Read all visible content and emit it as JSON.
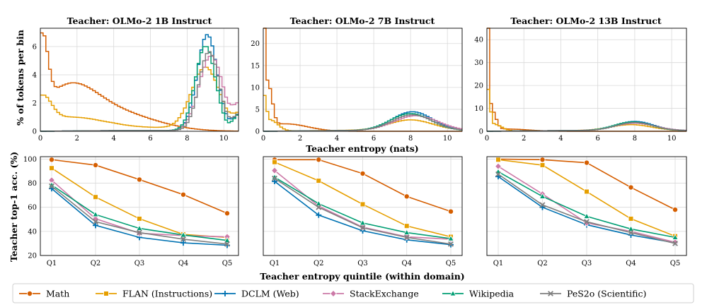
{
  "colors": {
    "Math": "#d55e00",
    "FLAN (Instructions)": "#e69f00",
    "DCLM (Web)": "#0072b2",
    "StackExchange": "#cc79a7",
    "Wikipedia": "#009e73",
    "PeS2o (Scientific)": "#7f7f7f"
  },
  "figure": {
    "top_xlabel": "Teacher entropy (nats)",
    "top_ylabel": "% of tokens per bin",
    "bottom_xlabel": "Teacher entropy quintile (within domain)",
    "bottom_ylabel": "Teacher top-1 acc. (%)"
  },
  "chart_data": [
    {
      "type": "line",
      "style": "step-histogram",
      "title": "Teacher: OLMo-2 1B Instruct",
      "xlabel": "Teacher entropy (nats)",
      "ylabel": "% of tokens per bin",
      "xlim": [
        0,
        10.8
      ],
      "ylim": [
        0,
        7.3
      ],
      "xticks": [
        0,
        2,
        4,
        6,
        8,
        10
      ],
      "yticks": [
        0,
        2,
        4,
        6
      ],
      "grid": true,
      "bins": {
        "start": 0,
        "end": 10.8,
        "width": 0.15
      },
      "series": [
        {
          "name": "Math",
          "peaks": [
            [
              0.1,
              5.0,
              0.3
            ],
            [
              1.5,
              2.7,
              1.5
            ],
            [
              4.0,
              1.3,
              2.2
            ]
          ],
          "ygrow": 0,
          "tail": 0.08,
          "cutoff": 0
        },
        {
          "name": "FLAN (Instructions)",
          "peaks": [
            [
              0.1,
              1.9,
              0.5
            ],
            [
              1.5,
              0.9,
              1.8
            ],
            [
              9.0,
              4.3,
              0.75
            ]
          ],
          "ygrow": 0.25,
          "tail": 0.9,
          "cutoff": 10.8
        },
        {
          "name": "DCLM (Web)",
          "peaks": [
            [
              9.1,
              6.8,
              0.55
            ]
          ],
          "ygrow": 0.05,
          "tail": 1.2,
          "cutoff": 10.8
        },
        {
          "name": "StackExchange",
          "peaks": [
            [
              9.3,
              5.3,
              0.65
            ]
          ],
          "ygrow": 0.05,
          "tail": 1.7,
          "cutoff": 10.8
        },
        {
          "name": "Wikipedia",
          "peaks": [
            [
              9.0,
              6.0,
              0.55
            ]
          ],
          "ygrow": 0.05,
          "tail": 1.2,
          "cutoff": 10.8
        },
        {
          "name": "PeS2o (Scientific)",
          "peaks": [
            [
              9.2,
              5.6,
              0.55
            ]
          ],
          "ygrow": 0.05,
          "tail": 1.2,
          "cutoff": 10.8
        }
      ]
    },
    {
      "type": "line",
      "style": "step-histogram",
      "title": "Teacher: OLMo-2 7B Instruct",
      "xlabel": "Teacher entropy (nats)",
      "ylabel": "",
      "xlim": [
        0,
        10.8
      ],
      "ylim": [
        0,
        23.5
      ],
      "xticks": [
        0,
        2,
        4,
        6,
        8,
        10
      ],
      "yticks": [
        0,
        5,
        10,
        15,
        20
      ],
      "grid": true,
      "bins": {
        "start": 0,
        "end": 10.8,
        "width": 0.15
      },
      "series": [
        {
          "name": "Math",
          "peaks": [
            [
              0.05,
              22.5,
              0.08
            ],
            [
              0.3,
              9.0,
              0.2
            ],
            [
              1.2,
              1.7,
              1.2
            ]
          ],
          "ygrow": 0,
          "tail": 0.2,
          "cutoff": 0
        },
        {
          "name": "FLAN (Instructions)",
          "peaks": [
            [
              0.05,
              6.5,
              0.12
            ],
            [
              0.4,
              2.5,
              0.4
            ],
            [
              8.0,
              2.4,
              1.2
            ]
          ],
          "ygrow": 0.2,
          "tail": 0.4,
          "cutoff": 0
        },
        {
          "name": "DCLM (Web)",
          "peaks": [
            [
              8.1,
              4.3,
              1.1
            ]
          ],
          "ygrow": 0.15,
          "tail": 0.7,
          "cutoff": 0
        },
        {
          "name": "StackExchange",
          "peaks": [
            [
              8.3,
              3.4,
              1.2
            ]
          ],
          "ygrow": 0.15,
          "tail": 0.9,
          "cutoff": 0
        },
        {
          "name": "Wikipedia",
          "peaks": [
            [
              8.0,
              3.9,
              1.1
            ]
          ],
          "ygrow": 0.15,
          "tail": 0.7,
          "cutoff": 0
        },
        {
          "name": "PeS2o (Scientific)",
          "peaks": [
            [
              8.1,
              3.6,
              1.1
            ]
          ],
          "ygrow": 0.15,
          "tail": 0.7,
          "cutoff": 0
        }
      ]
    },
    {
      "type": "line",
      "style": "step-histogram",
      "title": "Teacher: OLMo-2 13B Instruct",
      "xlabel": "Teacher entropy (nats)",
      "ylabel": "",
      "xlim": [
        0,
        10.8
      ],
      "ylim": [
        0,
        45
      ],
      "xticks": [
        0,
        2,
        4,
        6,
        8,
        10
      ],
      "yticks": [
        0,
        10,
        20,
        30,
        40
      ],
      "grid": true,
      "bins": {
        "start": 0,
        "end": 10.8,
        "width": 0.15
      },
      "series": [
        {
          "name": "Math",
          "peaks": [
            [
              0.05,
              42.5,
              0.08
            ],
            [
              0.3,
              8.0,
              0.2
            ],
            [
              1.0,
              1.0,
              1.2
            ]
          ],
          "ygrow": 0,
          "tail": 0,
          "cutoff": 0
        },
        {
          "name": "FLAN (Instructions)",
          "peaks": [
            [
              0.05,
              16.5,
              0.12
            ],
            [
              0.4,
              3.0,
              0.4
            ],
            [
              7.8,
              2.6,
              1.1
            ]
          ],
          "ygrow": 0.3,
          "tail": 0,
          "cutoff": 0
        },
        {
          "name": "DCLM (Web)",
          "peaks": [
            [
              8.0,
              4.0,
              1.0
            ]
          ],
          "ygrow": 0.3,
          "tail": 0,
          "cutoff": 0
        },
        {
          "name": "StackExchange",
          "peaks": [
            [
              8.0,
              3.2,
              1.1
            ]
          ],
          "ygrow": 0.3,
          "tail": 0,
          "cutoff": 0
        },
        {
          "name": "Wikipedia",
          "peaks": [
            [
              7.9,
              3.8,
              1.0
            ]
          ],
          "ygrow": 0.3,
          "tail": 0,
          "cutoff": 0
        },
        {
          "name": "PeS2o (Scientific)",
          "peaks": [
            [
              8.0,
              3.5,
              1.0
            ]
          ],
          "ygrow": 0.3,
          "tail": 0,
          "cutoff": 0
        }
      ]
    },
    {
      "type": "line",
      "title": "",
      "xlabel": "Teacher entropy quintile (within domain)",
      "ylabel": "Teacher top-1 acc. (%)",
      "categories": [
        "Q1",
        "Q2",
        "Q3",
        "Q4",
        "Q5"
      ],
      "ylim": [
        20,
        102
      ],
      "yticks": [
        20,
        40,
        60,
        80,
        100
      ],
      "grid": true,
      "series": [
        {
          "name": "Math",
          "values": [
            99.5,
            95,
            83,
            70.5,
            55
          ]
        },
        {
          "name": "FLAN (Instructions)",
          "values": [
            92.5,
            68.5,
            50.5,
            37.5,
            35
          ]
        },
        {
          "name": "DCLM (Web)",
          "values": [
            75.5,
            45,
            35,
            30.5,
            28.5
          ]
        },
        {
          "name": "StackExchange",
          "values": [
            82.5,
            50.5,
            38.5,
            36.5,
            35.5
          ]
        },
        {
          "name": "Wikipedia",
          "values": [
            78.5,
            54,
            42.5,
            37,
            32.5
          ]
        },
        {
          "name": "PeS2o (Scientific)",
          "values": [
            77.5,
            48,
            39,
            33.5,
            29.5
          ]
        }
      ]
    },
    {
      "type": "line",
      "title": "",
      "xlabel": "Teacher entropy quintile (within domain)",
      "ylabel": "",
      "categories": [
        "Q1",
        "Q2",
        "Q3",
        "Q4",
        "Q5"
      ],
      "ylim": [
        20,
        102
      ],
      "yticks": [
        20,
        40,
        60,
        80,
        100
      ],
      "grid": true,
      "series": [
        {
          "name": "Math",
          "values": [
            99.5,
            99.5,
            88,
            69,
            56.5
          ]
        },
        {
          "name": "FLAN (Instructions)",
          "values": [
            97.5,
            82,
            62.5,
            44.5,
            35.5
          ]
        },
        {
          "name": "DCLM (Web)",
          "values": [
            81.5,
            53.5,
            40.5,
            33,
            29
          ]
        },
        {
          "name": "StackExchange",
          "values": [
            90.5,
            61,
            43.5,
            35.5,
            33.5
          ]
        },
        {
          "name": "Wikipedia",
          "values": [
            85,
            63,
            47,
            39,
            34
          ]
        },
        {
          "name": "PeS2o (Scientific)",
          "values": [
            84,
            60,
            43,
            35,
            29.5
          ]
        }
      ]
    },
    {
      "type": "line",
      "title": "",
      "xlabel": "Teacher entropy quintile (within domain)",
      "ylabel": "",
      "categories": [
        "Q1",
        "Q2",
        "Q3",
        "Q4",
        "Q5"
      ],
      "ylim": [
        20,
        102
      ],
      "yticks": [
        20,
        40,
        60,
        80,
        100
      ],
      "grid": true,
      "series": [
        {
          "name": "Math",
          "values": [
            100,
            99.5,
            97,
            76.5,
            58
          ]
        },
        {
          "name": "FLAN (Instructions)",
          "values": [
            99.5,
            95,
            73,
            50.5,
            36
          ]
        },
        {
          "name": "DCLM (Web)",
          "values": [
            85.5,
            60,
            45.5,
            37,
            30.5
          ]
        },
        {
          "name": "StackExchange",
          "values": [
            94,
            71,
            47,
            40,
            31
          ]
        },
        {
          "name": "Wikipedia",
          "values": [
            89.5,
            69,
            52.5,
            42,
            35
          ]
        },
        {
          "name": "PeS2o (Scientific)",
          "values": [
            87.5,
            62,
            48,
            39,
            30
          ]
        }
      ]
    }
  ],
  "legend": {
    "placement": "bottom",
    "items": [
      {
        "label": "Math",
        "marker": "circle"
      },
      {
        "label": "FLAN (Instructions)",
        "marker": "square"
      },
      {
        "label": "DCLM (Web)",
        "marker": "plus"
      },
      {
        "label": "StackExchange",
        "marker": "diamond"
      },
      {
        "label": "Wikipedia",
        "marker": "triangle"
      },
      {
        "label": "PeS2o (Scientific)",
        "marker": "x"
      }
    ]
  }
}
